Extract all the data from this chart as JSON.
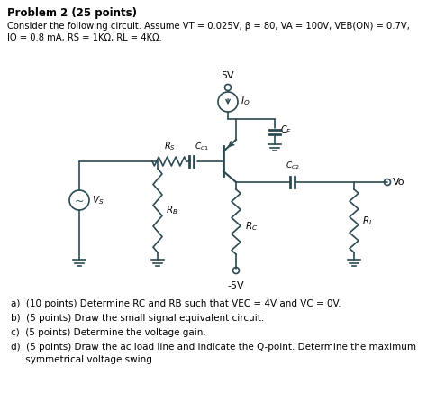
{
  "title": "Problem 2 (25 points)",
  "desc1": "Consider the following circuit. Assume VT = 0.025V, β = 80, VA = 100V, VEB(ON) = 0.7V,",
  "desc2": "IQ = 0.8 mA, RS = 1KΩ, RL = 4KΩ.",
  "q1": "a)  (10 points) Determine RC and RB such that VEC = 4V and VC = 0V.",
  "q2": "b)  (5 points) Draw the small signal equivalent circuit.",
  "q3": "c)  (5 points) Determine the voltage gain.",
  "q4": "d)  (5 points) Draw the ac load line and indicate the Q-point. Determine the maximum",
  "q5": "     symmetrical voltage swing",
  "bg_color": "#ffffff",
  "figsize": [
    4.74,
    4.37
  ],
  "dpi": 100
}
